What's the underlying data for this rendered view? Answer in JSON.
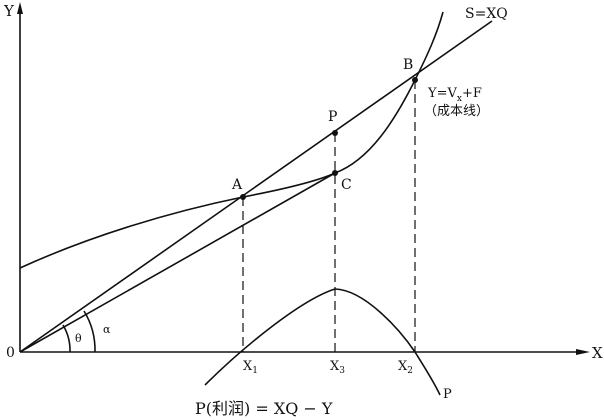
{
  "axes": {
    "y_label": "Y",
    "x_label": "X",
    "origin_label": "0"
  },
  "lines": {
    "revenue": "S=XQ",
    "cost": "Y=V",
    "cost_sub": "x",
    "cost_tail": "+F",
    "cost_note": "（成本线）",
    "profit_curve": "P"
  },
  "points": {
    "A": "A",
    "B": "B",
    "C": "C",
    "P": "P"
  },
  "x_ticks": [
    {
      "main": "X",
      "sub": "1"
    },
    {
      "main": "X",
      "sub": "3"
    },
    {
      "main": "X",
      "sub": "2"
    }
  ],
  "angles": {
    "theta": "θ",
    "alpha": "α"
  },
  "formula": "P(利润) = XQ − Y",
  "colors": {
    "ink": "#111111",
    "background": "#ffffff"
  }
}
